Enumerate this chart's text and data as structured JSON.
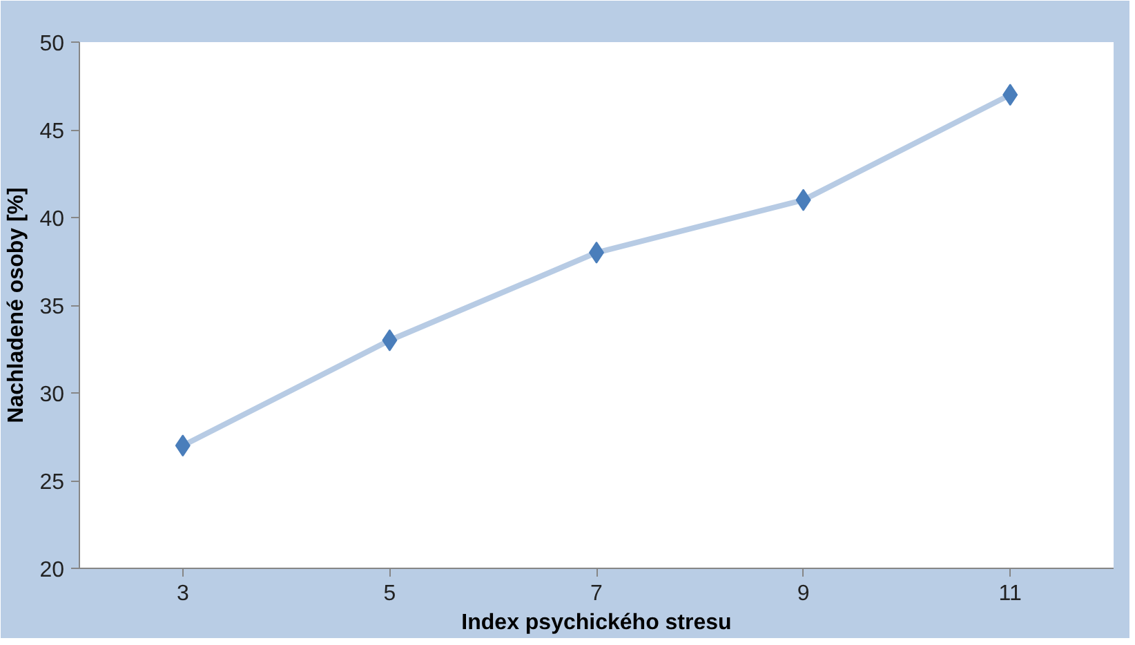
{
  "chart_data": {
    "type": "line",
    "xlabel": "Index psychického stresu",
    "ylabel": "Nachladené osoby [%]",
    "categories": [
      "3",
      "5",
      "7",
      "9",
      "11"
    ],
    "series": [
      {
        "color": "#4a7ebb",
        "values": [
          27,
          33,
          38,
          41,
          47
        ]
      }
    ],
    "ylim": [
      20,
      50
    ],
    "yticks": [
      20,
      25,
      30,
      35,
      40,
      45,
      50
    ],
    "grid": false,
    "marker": "diamond",
    "line_style": "solid"
  }
}
